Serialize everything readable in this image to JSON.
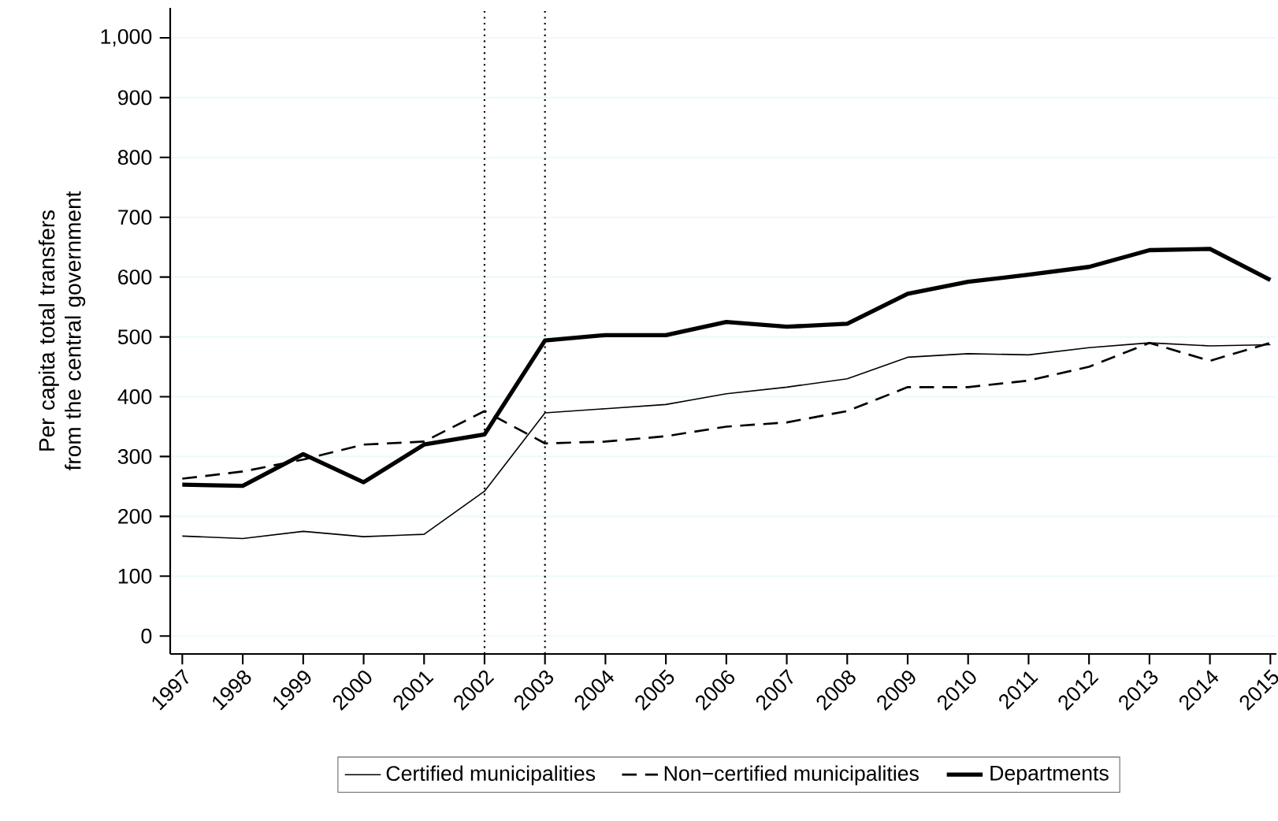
{
  "chart_data": {
    "type": "line",
    "ylabel": "Per capita total transfers from the central government",
    "x": [
      1997,
      1998,
      1999,
      2000,
      2001,
      2002,
      2003,
      2004,
      2005,
      2006,
      2007,
      2008,
      2009,
      2010,
      2011,
      2012,
      2013,
      2014,
      2015
    ],
    "series": [
      {
        "name": "Certified municipalities",
        "color": "#000000",
        "line_style": "solid",
        "values": [
          167,
          163,
          175,
          166,
          170,
          242,
          373,
          380,
          387,
          405,
          416,
          430,
          466,
          472,
          470,
          482,
          490,
          485,
          487
        ]
      },
      {
        "name": "Non−certified municipalities",
        "color": "#000000",
        "line_style": "dashed",
        "values": [
          263,
          275,
          295,
          320,
          325,
          376,
          322,
          325,
          334,
          350,
          357,
          376,
          416,
          416,
          427,
          450,
          490,
          460,
          490
        ]
      },
      {
        "name": "Departments",
        "color": "#000000",
        "line_style": "solid",
        "values": [
          253,
          251,
          304,
          257,
          320,
          337,
          494,
          503,
          503,
          525,
          517,
          522,
          572,
          592,
          604,
          617,
          645,
          647,
          595
        ]
      }
    ],
    "xlim": [
      1996.8,
      2015.1
    ],
    "ylim": [
      -30,
      1050
    ],
    "xticks": [
      1997,
      1998,
      1999,
      2000,
      2001,
      2002,
      2003,
      2004,
      2005,
      2006,
      2007,
      2008,
      2009,
      2010,
      2011,
      2012,
      2013,
      2014,
      2015
    ],
    "yticks": [
      0,
      100,
      200,
      300,
      400,
      500,
      600,
      700,
      800,
      900,
      {
        "value": 1000,
        "label": "1,000"
      }
    ],
    "ref_lines": [
      {
        "axis": "x",
        "value": 2002,
        "line_style": "dotted"
      },
      {
        "axis": "x",
        "value": 2003,
        "line_style": "dotted"
      }
    ],
    "grid": "y",
    "legend": "bottom",
    "marker": "none"
  }
}
